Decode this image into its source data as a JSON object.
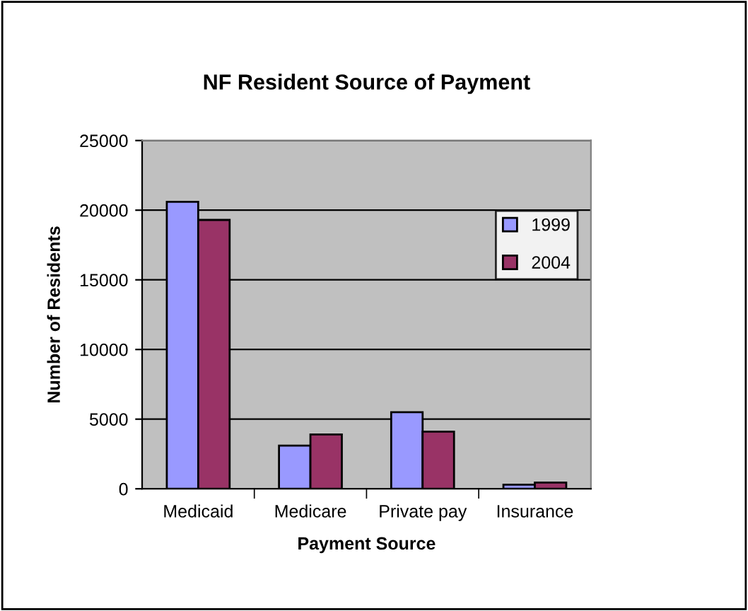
{
  "chart_data": {
    "type": "bar",
    "title": "NF Resident Source of Payment",
    "xlabel": "Payment Source",
    "ylabel": "Number of Residents",
    "categories": [
      "Medicaid",
      "Medicare",
      "Private pay",
      "Insurance"
    ],
    "series": [
      {
        "name": "1999",
        "color": "#9999ff",
        "values": [
          20600,
          3100,
          5500,
          300
        ]
      },
      {
        "name": "2004",
        "color": "#993366",
        "values": [
          19300,
          3900,
          4100,
          450
        ]
      }
    ],
    "ylim": [
      0,
      25000
    ],
    "yticks": [
      0,
      5000,
      10000,
      15000,
      20000,
      25000
    ],
    "grid": "y",
    "legend": "right"
  }
}
